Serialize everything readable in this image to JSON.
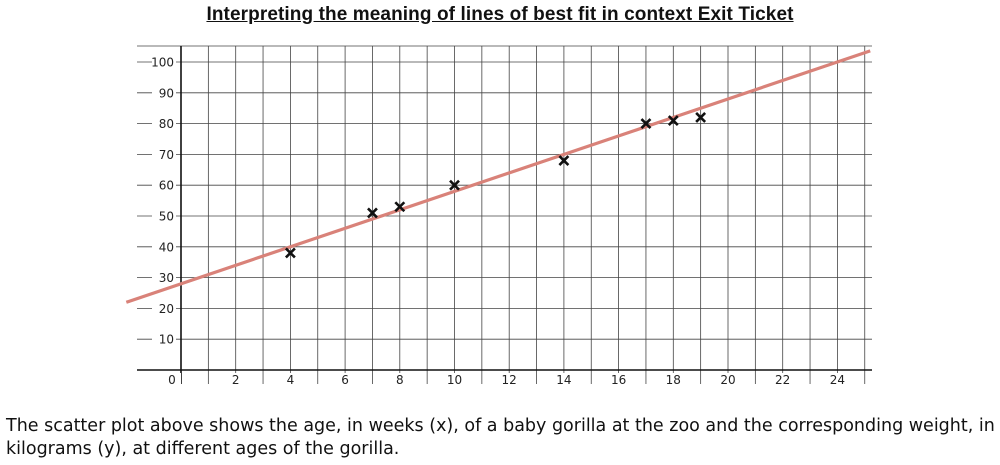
{
  "page": {
    "title": "Interpreting the meaning of lines of best fit in context Exit Ticket",
    "caption": "The scatter plot above shows the age, in weeks (x), of a baby gorilla at the zoo and the corresponding weight, in kilograms (y), at different ages of the gorilla."
  },
  "chart_data": {
    "type": "scatter",
    "title": "",
    "xlabel": "",
    "ylabel": "",
    "xlim": [
      0,
      24
    ],
    "ylim": [
      0,
      100
    ],
    "x_ticks": [
      0,
      2,
      4,
      6,
      8,
      10,
      12,
      14,
      16,
      18,
      20,
      22,
      24
    ],
    "y_ticks": [
      10,
      20,
      30,
      40,
      50,
      60,
      70,
      80,
      90,
      100
    ],
    "grid": true,
    "series": [
      {
        "marker": "x",
        "color": "#111111",
        "points": [
          {
            "x": 4,
            "y": 38
          },
          {
            "x": 7,
            "y": 51
          },
          {
            "x": 8,
            "y": 53
          },
          {
            "x": 10,
            "y": 60
          },
          {
            "x": 14,
            "y": 68
          },
          {
            "x": 17,
            "y": 80
          },
          {
            "x": 18,
            "y": 81
          },
          {
            "x": 19,
            "y": 82
          }
        ]
      }
    ],
    "best_fit_line": {
      "color": "#d98279",
      "slope": 3,
      "intercept": 28
    }
  }
}
